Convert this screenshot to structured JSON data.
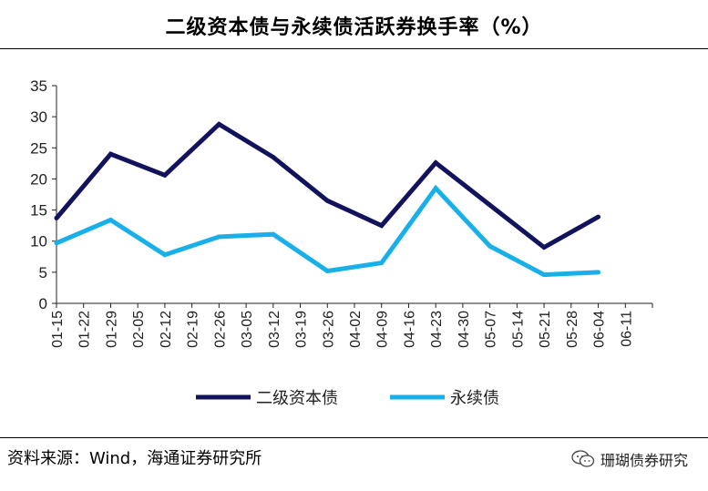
{
  "chart_data": {
    "type": "line",
    "title": "二级资本债与永续债活跃券换手率（%）",
    "categories": [
      "01-15",
      "01-22",
      "01-29",
      "02-05",
      "02-12",
      "02-19",
      "02-26",
      "03-05",
      "03-12",
      "03-19",
      "03-26",
      "04-02",
      "04-09",
      "04-16",
      "04-23",
      "04-30",
      "05-07",
      "05-14",
      "05-21",
      "05-28",
      "06-04",
      "06-11"
    ],
    "ylim": [
      0,
      35
    ],
    "yticks": [
      0,
      5,
      10,
      15,
      20,
      25,
      30,
      35
    ],
    "grid": false,
    "legend_position": "bottom",
    "series": [
      {
        "name": "二级资本债",
        "color": "#12135c",
        "points": [
          {
            "x": "01-15",
            "y": 13.7
          },
          {
            "x": "01-29",
            "y": 24.0
          },
          {
            "x": "02-12",
            "y": 20.6
          },
          {
            "x": "02-26",
            "y": 28.8
          },
          {
            "x": "03-12",
            "y": 23.5
          },
          {
            "x": "03-26",
            "y": 16.5
          },
          {
            "x": "04-09",
            "y": 12.5
          },
          {
            "x": "04-23",
            "y": 22.6
          },
          {
            "x": "05-07",
            "y": 15.8
          },
          {
            "x": "05-21",
            "y": 9.0
          },
          {
            "x": "06-04",
            "y": 13.9
          }
        ]
      },
      {
        "name": "永续债",
        "color": "#19b0ea",
        "points": [
          {
            "x": "01-15",
            "y": 9.7
          },
          {
            "x": "01-29",
            "y": 13.4
          },
          {
            "x": "02-12",
            "y": 7.8
          },
          {
            "x": "02-26",
            "y": 10.7
          },
          {
            "x": "03-12",
            "y": 11.1
          },
          {
            "x": "03-26",
            "y": 5.2
          },
          {
            "x": "04-09",
            "y": 6.5
          },
          {
            "x": "04-23",
            "y": 18.5
          },
          {
            "x": "05-07",
            "y": 9.2
          },
          {
            "x": "05-21",
            "y": 4.6
          },
          {
            "x": "06-04",
            "y": 5.0
          }
        ]
      }
    ]
  },
  "footer": {
    "source": "资料来源：Wind，海通证券研究所",
    "brand": "珊瑚债券研究"
  }
}
